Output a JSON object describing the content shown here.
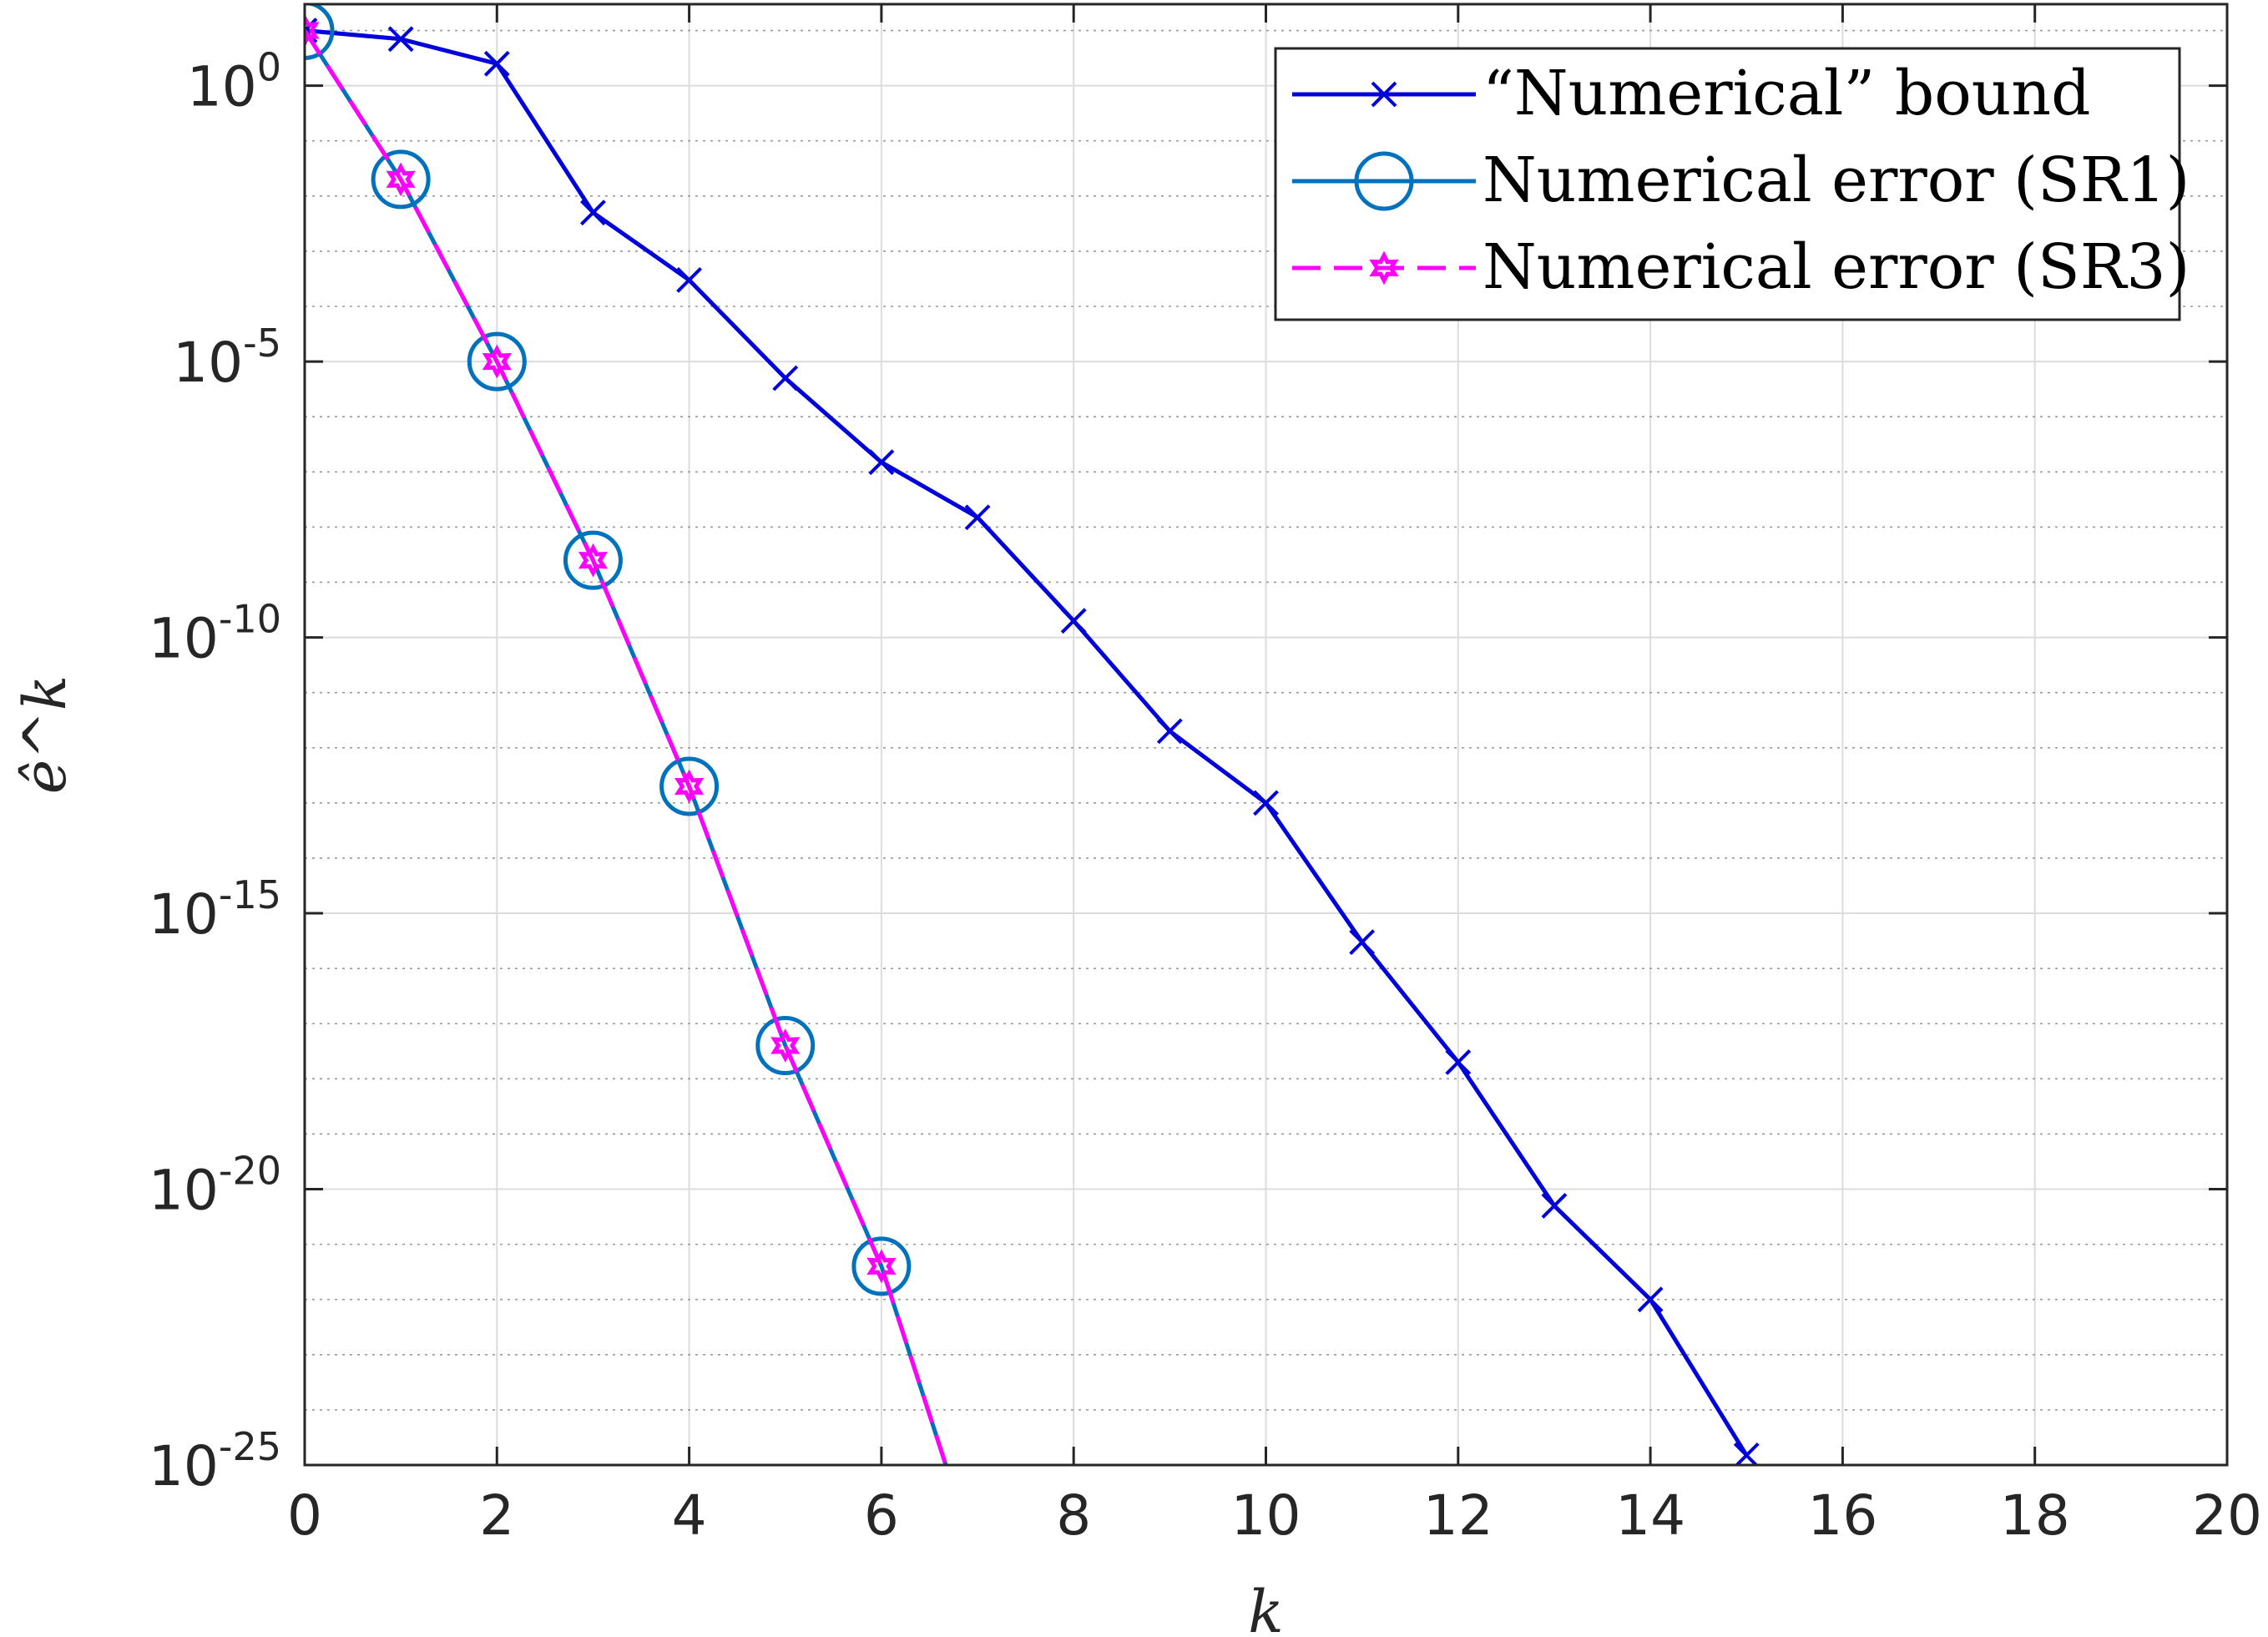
{
  "chart_data": {
    "type": "line",
    "y_scale": "log",
    "title": "",
    "xlabel": "k",
    "ylabel": "ê^k",
    "xlim": [
      0,
      20
    ],
    "ylim": [
      1e-25,
      30.0
    ],
    "grid": true,
    "minor_grid": true,
    "legend_position": "top-right",
    "x_ticks": [
      {
        "value": 0,
        "label": "0"
      },
      {
        "value": 2,
        "label": "2"
      },
      {
        "value": 4,
        "label": "4"
      },
      {
        "value": 6,
        "label": "6"
      },
      {
        "value": 8,
        "label": "8"
      },
      {
        "value": 10,
        "label": "10"
      },
      {
        "value": 12,
        "label": "12"
      },
      {
        "value": 14,
        "label": "14"
      },
      {
        "value": 16,
        "label": "16"
      },
      {
        "value": 18,
        "label": "18"
      },
      {
        "value": 20,
        "label": "20"
      }
    ],
    "y_ticks": [
      {
        "value": 1,
        "base": "10",
        "exp": "0"
      },
      {
        "value": 1e-05,
        "base": "10",
        "exp": "-5"
      },
      {
        "value": 1e-10,
        "base": "10",
        "exp": "-10"
      },
      {
        "value": 1e-15,
        "base": "10",
        "exp": "-15"
      },
      {
        "value": 1e-20,
        "base": "10",
        "exp": "-20"
      },
      {
        "value": 1e-25,
        "base": "10",
        "exp": "-25"
      }
    ],
    "series": [
      {
        "name": "“Numerical” bound",
        "color": "#0000dd",
        "marker": "x",
        "dash": "solid",
        "x": [
          0,
          1,
          2,
          3,
          4,
          5,
          6,
          7,
          8,
          9,
          10,
          11,
          12,
          13,
          14,
          15
        ],
        "y": [
          10,
          7,
          2.5,
          0.005,
          0.0003,
          5e-06,
          1.5e-07,
          1.5e-08,
          2e-10,
          2e-12,
          1e-13,
          3e-16,
          2e-18,
          5e-21,
          1e-22,
          1.5e-25
        ]
      },
      {
        "name": "Numerical error (SR1)",
        "color": "#0072bd",
        "marker": "circle",
        "dash": "solid",
        "x": [
          0,
          1,
          2,
          3,
          4,
          5,
          6,
          6.67
        ],
        "y": [
          10,
          0.02,
          1e-05,
          2.5e-09,
          2e-13,
          4e-18,
          4e-22,
          1e-25
        ]
      },
      {
        "name": "Numerical error (SR3)",
        "color": "#ff00ff",
        "marker": "hexagram",
        "dash": "dashed",
        "x": [
          0,
          1,
          2,
          3,
          4,
          5,
          6,
          6.67
        ],
        "y": [
          10,
          0.02,
          1e-05,
          2.5e-09,
          2e-13,
          4e-18,
          4e-22,
          1e-25
        ]
      }
    ]
  }
}
